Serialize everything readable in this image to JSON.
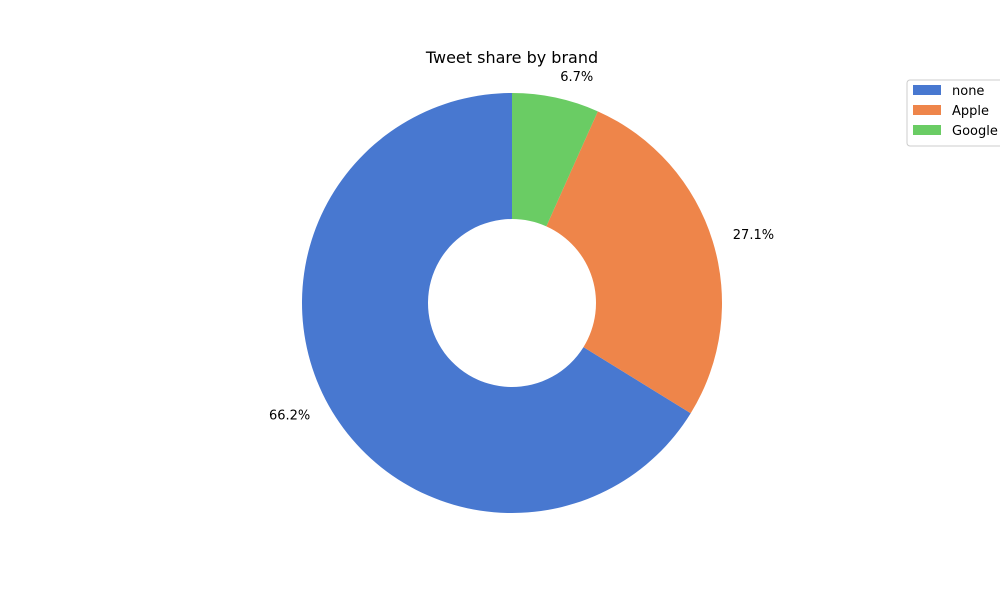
{
  "chart_data": {
    "type": "pie",
    "title": "Tweet share by brand",
    "donut": true,
    "start_angle_deg": 90,
    "direction": "counterclockwise",
    "slices": [
      {
        "label": "none",
        "value": 66.2,
        "pct_label": "66.2%",
        "color": "#4878d0"
      },
      {
        "label": "Apple",
        "value": 27.1,
        "pct_label": "27.1%",
        "color": "#ee854a"
      },
      {
        "label": "Google",
        "value": 6.7,
        "pct_label": "6.7%",
        "color": "#6acc64"
      }
    ],
    "legend": {
      "placement": "top-right",
      "entries": [
        "none",
        "Apple",
        "Google"
      ]
    }
  }
}
